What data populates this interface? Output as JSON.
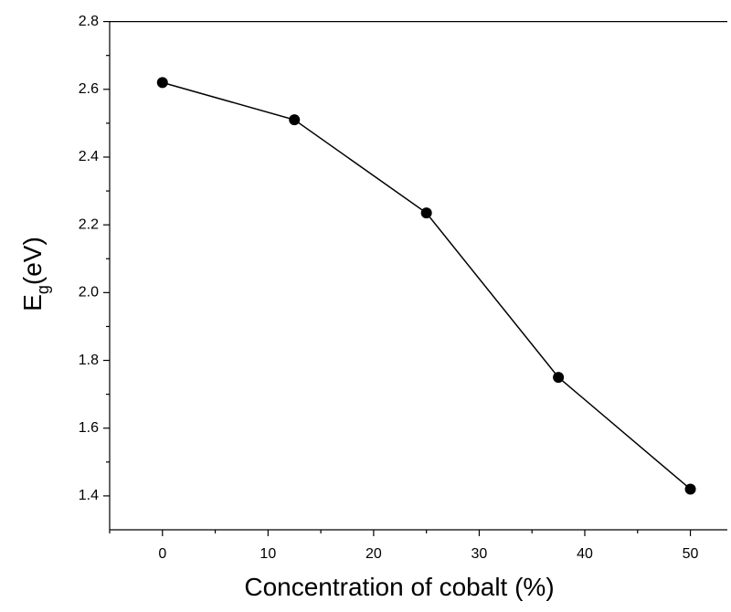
{
  "chart_data": {
    "type": "line",
    "xlabel": "Concentration of cobalt (%)",
    "ylabel": {
      "main": "E",
      "sub": "g",
      "rest": "(eV)"
    },
    "x": [
      0,
      12.5,
      25,
      37.5,
      50
    ],
    "series": [
      {
        "color": "#000000",
        "values": [
          2.62,
          2.51,
          2.235,
          1.75,
          1.42
        ]
      }
    ],
    "xlim": [
      -5,
      53.5
    ],
    "xticks": [
      0,
      10,
      20,
      30,
      40,
      50
    ],
    "ylim": [
      1.3,
      2.8
    ],
    "yticks": [
      {
        "value": 1.4,
        "label": "1.4"
      },
      {
        "value": 1.6,
        "label": "1.6"
      },
      {
        "value": 1.8,
        "label": "1.8"
      },
      {
        "value": 2.0,
        "label": "2.0"
      },
      {
        "value": 2.2,
        "label": "2.2"
      },
      {
        "value": 2.4,
        "label": "2.4"
      },
      {
        "value": 2.6,
        "label": "2.6"
      },
      {
        "value": 2.8,
        "label": "2.8"
      }
    ],
    "grid": false
  }
}
